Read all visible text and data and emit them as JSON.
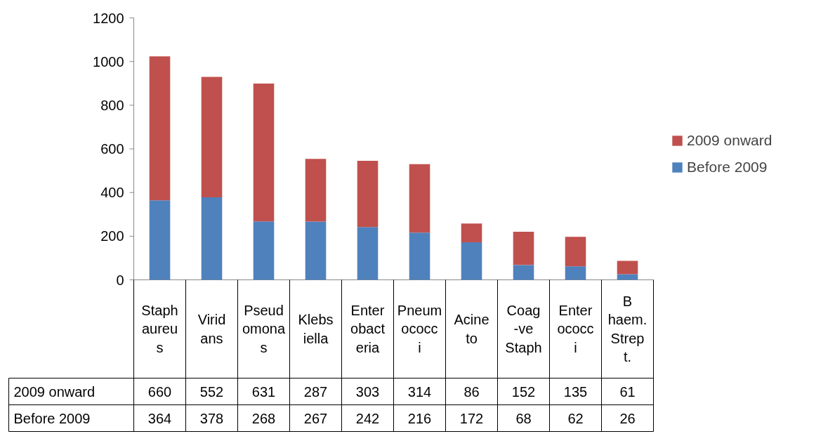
{
  "chart_data": {
    "type": "bar",
    "stacked": true,
    "categories": [
      "Staph aureus",
      "Viridans",
      "Pseudomonas",
      "Klebsiella",
      "Enterobacteria",
      "Pneumococci",
      "Acineto",
      "Coag -ve Staph",
      "Enterococci",
      "B haem. Strept."
    ],
    "series": [
      {
        "name": "Before 2009",
        "color": "#4f81bd",
        "values": [
          364,
          378,
          268,
          267,
          242,
          216,
          172,
          68,
          62,
          26
        ]
      },
      {
        "name": "2009 onward",
        "color": "#c0504d",
        "values": [
          660,
          552,
          631,
          287,
          303,
          314,
          86,
          152,
          135,
          61
        ]
      }
    ],
    "ylim": [
      0,
      1200
    ],
    "yticks": [
      0,
      200,
      400,
      600,
      800,
      1000,
      1200
    ],
    "grid": false,
    "legend": "right",
    "data_labels": true
  }
}
